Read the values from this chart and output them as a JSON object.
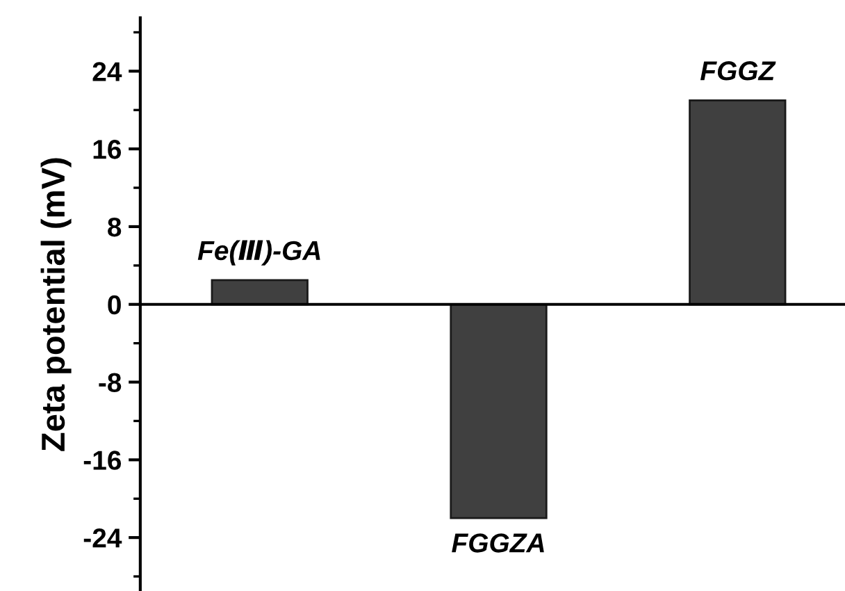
{
  "chart_data": {
    "type": "bar",
    "ylabel": "Zeta potential (mV)",
    "categories": [
      "Fe(Ⅲ)-GA",
      "FGGZA",
      "FGGZ"
    ],
    "values": [
      2.5,
      -22,
      21
    ],
    "color": "#404040",
    "ylim": [
      -29.5,
      29.5
    ],
    "yticks": [
      -24,
      -16,
      -8,
      0,
      8,
      16,
      24
    ]
  }
}
